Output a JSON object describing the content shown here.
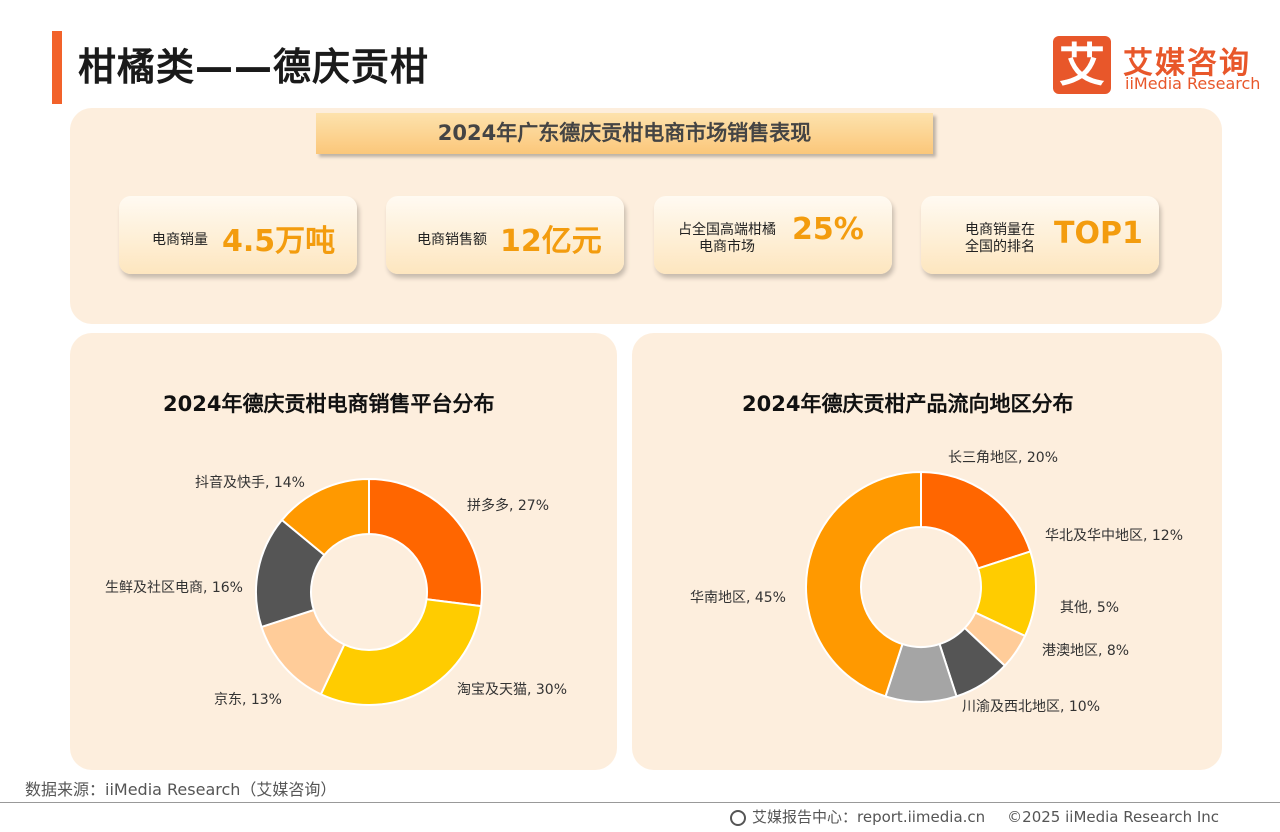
{
  "header": {
    "title": "柑橘类——德庆贡柑"
  },
  "logo": {
    "mark": "艾",
    "name_cn": "艾媒咨询",
    "name_en": "iiMedia Research"
  },
  "summary": {
    "banner": "2024年广东德庆贡柑电商市场销售表现",
    "kpis": [
      {
        "label": "电商销量",
        "value": "4.5万吨"
      },
      {
        "label": "电商销售额",
        "value": "12亿元"
      },
      {
        "label": "占全国高端柑橘\n电商市场",
        "value": "25%"
      },
      {
        "label": "电商销量在\n全国的排名",
        "value": "TOP1"
      }
    ]
  },
  "colors": {
    "accent": "#f2622a",
    "panel_bg": "#fdeedd",
    "kpi_value": "#f39c0e"
  },
  "chart_data": [
    {
      "type": "pie",
      "title": "2024年德庆贡柑电商销售平台分布",
      "categories": [
        "拼多多",
        "淘宝及天猫",
        "京东",
        "生鲜及社区电商",
        "抖音及快手"
      ],
      "values": [
        27,
        30,
        13,
        16,
        14
      ],
      "colors": [
        "#ff6600",
        "#ffcc00",
        "#ffcc99",
        "#555555",
        "#ff9900"
      ],
      "labels": [
        "拼多多, 27%",
        "淘宝及天猫, 30%",
        "京东, 13%",
        "生鲜及社区电商, 16%",
        "抖音及快手, 14%"
      ],
      "donut": true
    },
    {
      "type": "pie",
      "title": "2024年德庆贡柑产品流向地区分布",
      "categories": [
        "长三角地区",
        "华北及华中地区",
        "其他",
        "港澳地区",
        "川渝及西北地区",
        "华南地区"
      ],
      "values": [
        20,
        12,
        5,
        8,
        10,
        45
      ],
      "colors": [
        "#ff6600",
        "#ffcc00",
        "#ffcc99",
        "#555555",
        "#a5a5a5",
        "#ff9900"
      ],
      "labels": [
        "长三角地区, 20%",
        "华北及华中地区, 12%",
        "其他, 5%",
        "港澳地区, 8%",
        "川渝及西北地区, 10%",
        "华南地区, 45%"
      ],
      "donut": true
    }
  ],
  "source": "数据来源：iiMedia Research（艾媒咨询）",
  "footer": {
    "report_center": "艾媒报告中心：report.iimedia.cn",
    "copyright": "©2025  iiMedia Research  Inc"
  }
}
